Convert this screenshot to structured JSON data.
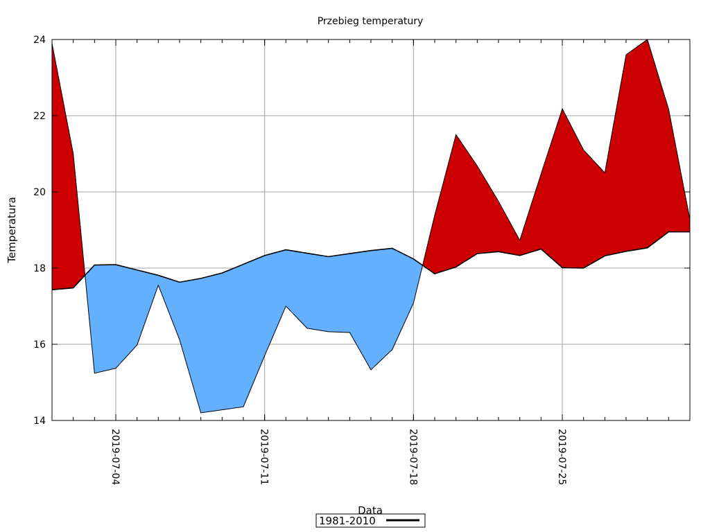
{
  "chart_data": {
    "type": "area",
    "title": "Przebieg temperatury",
    "xlabel": "Data",
    "ylabel": "Temperatura",
    "ylim": [
      14,
      24
    ],
    "y_ticks": [
      14,
      16,
      18,
      20,
      22,
      24
    ],
    "x_ticks": [
      "2019-07-04",
      "2019-07-11",
      "2019-07-18",
      "2019-07-25"
    ],
    "xlim": [
      "2019-07-01",
      "2019-07-31"
    ],
    "grid": true,
    "legend": {
      "position": "bottom-center",
      "entries": [
        "1981-2010"
      ]
    },
    "colors": {
      "above": "#cc0000",
      "below": "#63b0ff",
      "line": "#000000",
      "grid": "#a0a0a0"
    },
    "x": [
      "2019-07-01",
      "2019-07-02",
      "2019-07-03",
      "2019-07-04",
      "2019-07-05",
      "2019-07-06",
      "2019-07-07",
      "2019-07-08",
      "2019-07-09",
      "2019-07-10",
      "2019-07-11",
      "2019-07-12",
      "2019-07-13",
      "2019-07-14",
      "2019-07-15",
      "2019-07-16",
      "2019-07-17",
      "2019-07-18",
      "2019-07-19",
      "2019-07-20",
      "2019-07-21",
      "2019-07-22",
      "2019-07-23",
      "2019-07-24",
      "2019-07-25",
      "2019-07-26",
      "2019-07-27",
      "2019-07-28",
      "2019-07-29",
      "2019-07-30",
      "2019-07-31"
    ],
    "series": [
      {
        "name": "1981-2010",
        "values": [
          17.43,
          17.48,
          18.08,
          18.09,
          17.95,
          17.81,
          17.63,
          17.73,
          17.87,
          18.1,
          18.33,
          18.48,
          18.39,
          18.3,
          18.38,
          18.46,
          18.52,
          18.24,
          17.85,
          18.03,
          18.38,
          18.43,
          18.33,
          18.5,
          18.01,
          18.0,
          18.32,
          18.44,
          18.53,
          18.95,
          18.95
        ]
      },
      {
        "values": [
          23.9,
          21.0,
          15.24,
          15.37,
          15.98,
          17.55,
          16.12,
          14.2,
          14.28,
          14.36,
          15.7,
          17.0,
          16.42,
          16.33,
          16.31,
          15.33,
          15.86,
          17.08,
          19.39,
          21.5,
          20.68,
          19.75,
          18.73,
          20.47,
          22.18,
          21.1,
          20.5,
          23.6,
          24.0,
          22.17,
          19.28
        ]
      }
    ]
  }
}
